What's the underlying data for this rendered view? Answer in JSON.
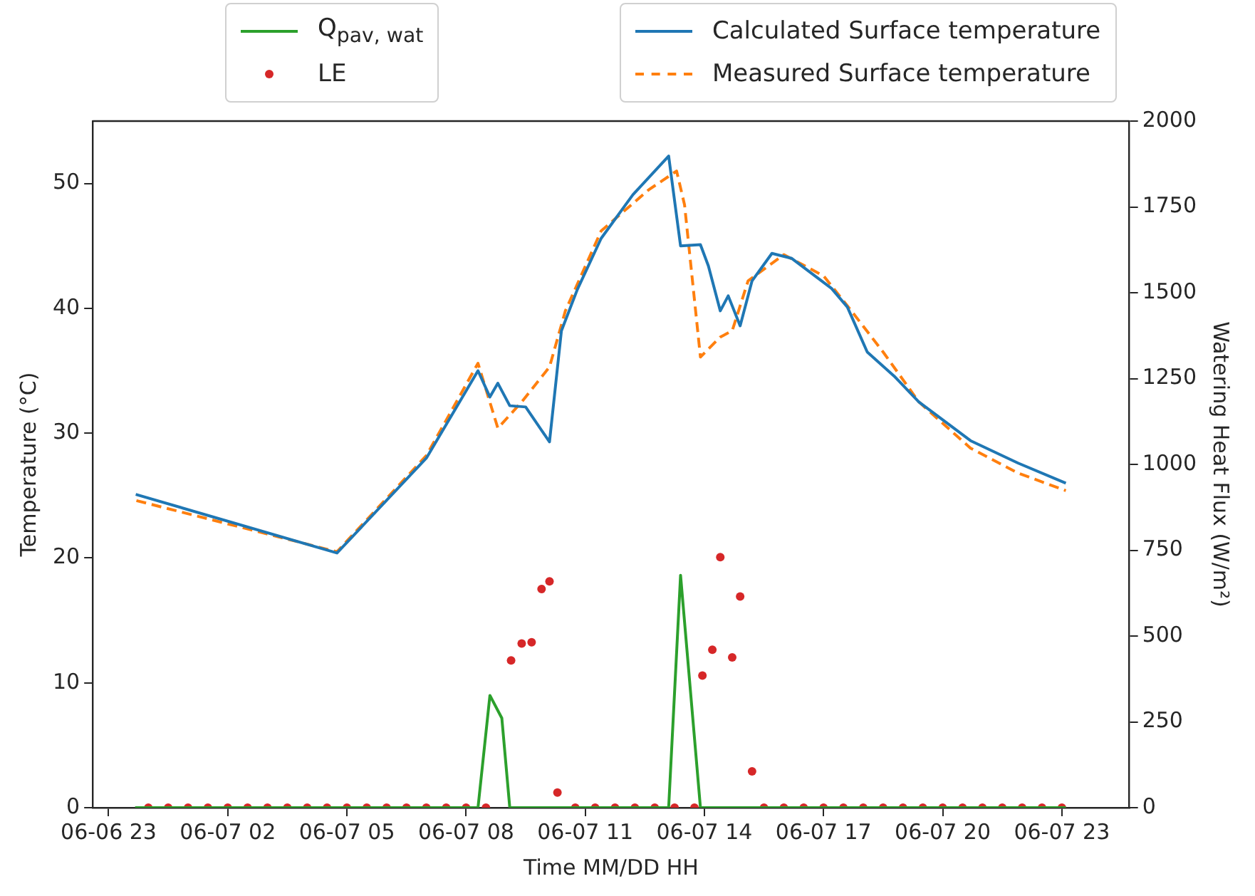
{
  "chart_data": {
    "type": "line",
    "xlabel": "Time MM/DD HH",
    "ylabel": "Temperature (°C)",
    "y2label": "Watering Heat Flux (W/m²)",
    "xlim": [
      "--06-06T22:36",
      "--06-08T00:42"
    ],
    "xticks": [
      {
        "value": "--06-06T23:00",
        "label": "06-06 23"
      },
      {
        "value": "--06-07T02:00",
        "label": "06-07 02"
      },
      {
        "value": "--06-07T05:00",
        "label": "06-07 05"
      },
      {
        "value": "--06-07T08:00",
        "label": "06-07 08"
      },
      {
        "value": "--06-07T11:00",
        "label": "06-07 11"
      },
      {
        "value": "--06-07T14:00",
        "label": "06-07 14"
      },
      {
        "value": "--06-07T17:00",
        "label": "06-07 17"
      },
      {
        "value": "--06-07T20:00",
        "label": "06-07 20"
      },
      {
        "value": "--06-07T23:00",
        "label": "06-07 23"
      }
    ],
    "ylim": [
      0,
      55
    ],
    "yticks": [
      0,
      10,
      20,
      30,
      40,
      50
    ],
    "y2lim": [
      0,
      2000
    ],
    "y2ticks": [
      0,
      250,
      500,
      750,
      1000,
      1250,
      1500,
      1750,
      2000
    ],
    "legend": "top",
    "grid": false,
    "series": [
      {
        "name": "Q$_{pav, wat}$",
        "type": "line",
        "axis": "y2",
        "color": "#2ca02c",
        "marker": "none",
        "line_style": "solid",
        "x": [
          "--06-06T23:40",
          "--06-07T08:18",
          "--06-07T08:36",
          "--06-07T08:54",
          "--06-07T09:06",
          "--06-07T13:06",
          "--06-07T13:24",
          "--06-07T13:54",
          "--06-07T23:06"
        ],
        "values": [
          0,
          0,
          327,
          261,
          0,
          0,
          677,
          0,
          0
        ]
      },
      {
        "name": "LE",
        "type": "scatter",
        "axis": "y2",
        "color": "#d62728",
        "marker": "circle",
        "x": [
          "--06-07T00:00",
          "--06-07T00:30",
          "--06-07T01:00",
          "--06-07T01:30",
          "--06-07T02:00",
          "--06-07T02:30",
          "--06-07T03:00",
          "--06-07T03:30",
          "--06-07T04:00",
          "--06-07T04:30",
          "--06-07T05:00",
          "--06-07T05:30",
          "--06-07T06:00",
          "--06-07T06:30",
          "--06-07T07:00",
          "--06-07T07:30",
          "--06-07T08:00",
          "--06-07T08:30",
          "--06-07T09:08",
          "--06-07T09:24",
          "--06-07T09:39",
          "--06-07T09:54",
          "--06-07T10:06",
          "--06-07T10:18",
          "--06-07T10:45",
          "--06-07T11:15",
          "--06-07T11:45",
          "--06-07T12:15",
          "--06-07T12:45",
          "--06-07T13:15",
          "--06-07T13:45",
          "--06-07T13:57",
          "--06-07T14:12",
          "--06-07T14:24",
          "--06-07T14:42",
          "--06-07T14:54",
          "--06-07T15:12",
          "--06-07T15:30",
          "--06-07T16:00",
          "--06-07T16:30",
          "--06-07T17:00",
          "--06-07T17:30",
          "--06-07T18:00",
          "--06-07T18:30",
          "--06-07T19:00",
          "--06-07T19:30",
          "--06-07T20:00",
          "--06-07T20:30",
          "--06-07T21:00",
          "--06-07T21:30",
          "--06-07T22:00",
          "--06-07T22:30",
          "--06-07T23:00"
        ],
        "values": [
          0,
          0,
          0,
          0,
          0,
          0,
          0,
          0,
          0,
          0,
          0,
          0,
          0,
          0,
          0,
          0,
          0,
          0,
          429,
          478,
          482,
          637,
          659,
          44,
          0,
          0,
          0,
          0,
          0,
          0,
          0,
          385,
          460,
          730,
          438,
          615,
          106,
          0,
          0,
          0,
          0,
          0,
          0,
          0,
          0,
          0,
          0,
          0,
          0,
          0,
          0,
          0,
          0
        ]
      },
      {
        "name": "Calculated Surface temperature",
        "type": "line",
        "color": "#1f77b4",
        "marker": "none",
        "line_style": "solid",
        "x": [
          "--06-06T23:41",
          "--06-07T04:45",
          "--06-07T07:00",
          "--06-07T08:18",
          "--06-07T08:36",
          "--06-07T08:48",
          "--06-07T09:06",
          "--06-07T09:30",
          "--06-07T10:06",
          "--06-07T10:24",
          "--06-07T10:48",
          "--06-07T11:24",
          "--06-07T12:12",
          "--06-07T13:06",
          "--06-07T13:24",
          "--06-07T13:54",
          "--06-07T14:06",
          "--06-07T14:24",
          "--06-07T14:36",
          "--06-07T14:54",
          "--06-07T15:12",
          "--06-07T15:42",
          "--06-07T16:12",
          "--06-07T17:12",
          "--06-07T17:36",
          "--06-07T18:06",
          "--06-07T18:48",
          "--06-07T19:24",
          "--06-07T20:42",
          "--06-07T21:54",
          "--06-07T23:06"
        ],
        "values": [
          25.1,
          20.4,
          28,
          35,
          32.9,
          34,
          32.2,
          32.1,
          29.3,
          38.2,
          41.5,
          45.6,
          49.1,
          52.2,
          45,
          45.1,
          43.4,
          39.8,
          41,
          38.6,
          42.2,
          44.4,
          44,
          41.6,
          40.1,
          36.5,
          34.5,
          32.5,
          29.4,
          27.6,
          26
        ]
      },
      {
        "name": "Measured Surface temperature",
        "type": "line",
        "color": "#ff7f0e",
        "marker": "none",
        "line_style": "dashed",
        "x": [
          "--06-06T23:42",
          "--06-07T04:45",
          "--06-07T07:00",
          "--06-07T08:18",
          "--06-07T08:48",
          "--06-07T09:24",
          "--06-07T10:06",
          "--06-07T10:30",
          "--06-07T11:24",
          "--06-07T12:36",
          "--06-07T13:18",
          "--06-07T13:30",
          "--06-07T13:54",
          "--06-07T14:24",
          "--06-07T14:42",
          "--06-07T15:06",
          "--06-07T16:00",
          "--06-07T17:00",
          "--06-07T17:42",
          "--06-07T18:30",
          "--06-07T19:24",
          "--06-07T20:42",
          "--06-07T21:54",
          "--06-07T23:06"
        ],
        "values": [
          24.6,
          20.5,
          28.2,
          35.6,
          30.4,
          32.5,
          35.3,
          39.8,
          46.2,
          49.5,
          51,
          48.3,
          36.1,
          37.7,
          38.2,
          42.2,
          44.3,
          42.6,
          39.8,
          36.5,
          32.5,
          28.8,
          26.8,
          25.4
        ]
      }
    ]
  }
}
